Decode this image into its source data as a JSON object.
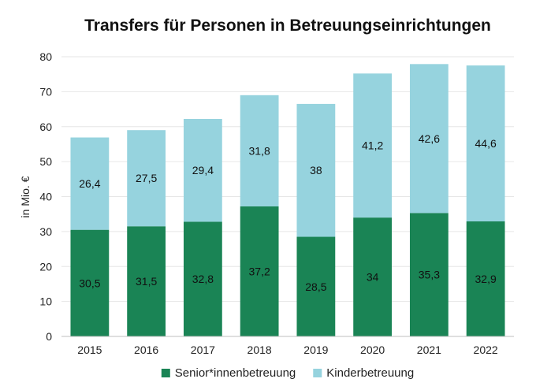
{
  "chart_data": {
    "type": "bar",
    "stacked": true,
    "title": "Transfers für Personen in Betreuungseinrichtungen",
    "ylabel": "in Mio. €",
    "xlabel": "",
    "ylim": [
      0,
      80
    ],
    "yticks": [
      0,
      10,
      20,
      30,
      40,
      50,
      60,
      70,
      80
    ],
    "grid": true,
    "legend_position": "bottom",
    "categories": [
      "2015",
      "2016",
      "2017",
      "2018",
      "2019",
      "2020",
      "2021",
      "2022"
    ],
    "series": [
      {
        "name": "Senior*innenbetreuung",
        "color": "#1a8455",
        "values": [
          30.5,
          31.5,
          32.8,
          37.2,
          28.5,
          34,
          35.3,
          32.9
        ],
        "labels": [
          "30,5",
          "31,5",
          "32,8",
          "37,2",
          "28,5",
          "34",
          "35,3",
          "32,9"
        ]
      },
      {
        "name": "Kinderbetreuung",
        "color": "#96d3de",
        "values": [
          26.4,
          27.5,
          29.4,
          31.8,
          38,
          41.2,
          42.6,
          44.6
        ],
        "labels": [
          "26,4",
          "27,5",
          "29,4",
          "31,8",
          "38",
          "41,2",
          "42,6",
          "44,6"
        ]
      }
    ]
  }
}
